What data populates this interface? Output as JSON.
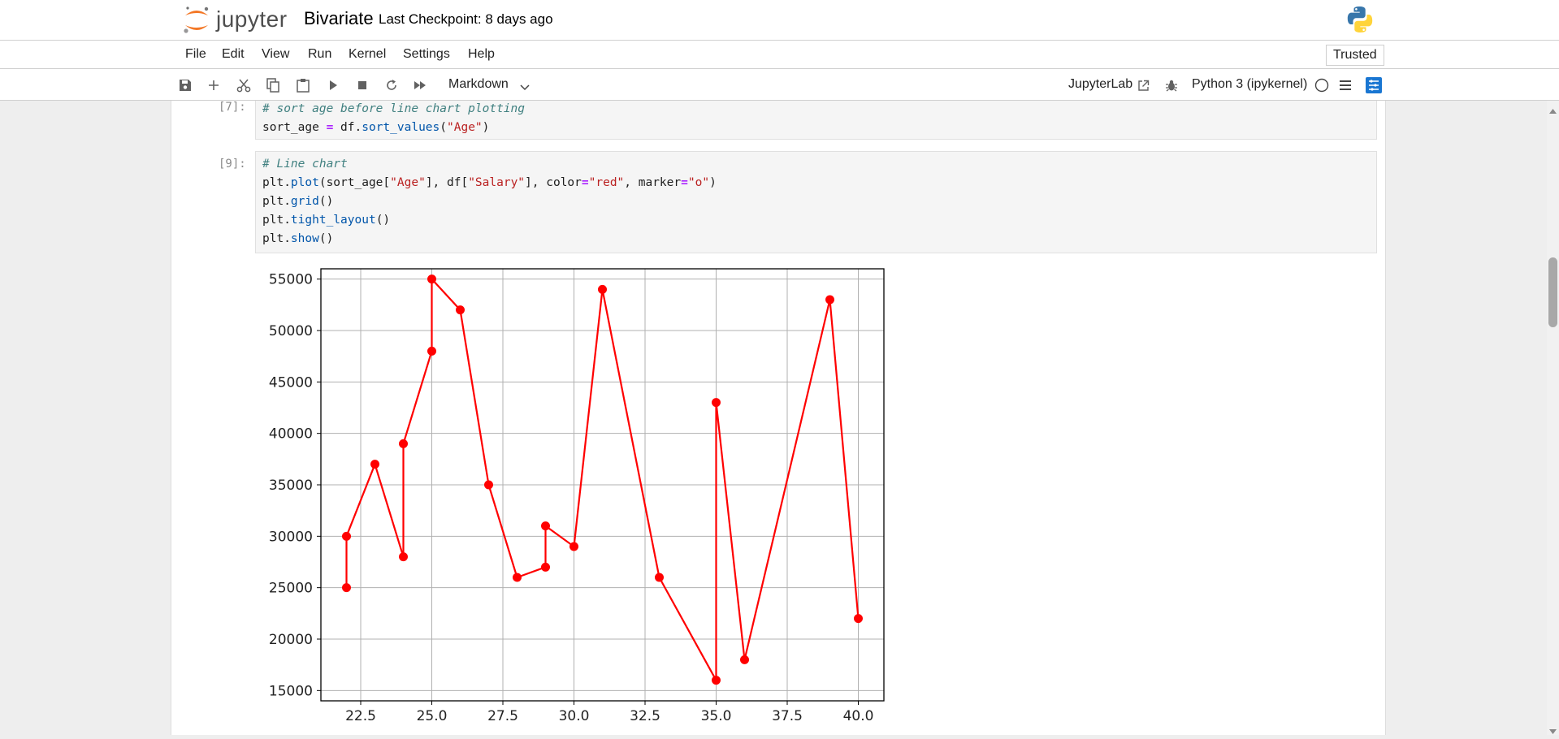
{
  "header": {
    "app_name": "jupyter",
    "notebook_title": "Bivariate",
    "checkpoint": "Last Checkpoint: 8 days ago"
  },
  "menu": {
    "items": [
      "File",
      "Edit",
      "View",
      "Run",
      "Kernel",
      "Settings",
      "Help"
    ],
    "trusted": "Trusted"
  },
  "toolbar": {
    "icons": [
      "save-icon",
      "add-icon",
      "cut-icon",
      "copy-icon",
      "paste-icon",
      "run-icon",
      "stop-icon",
      "restart-icon",
      "fast-forward-icon"
    ],
    "cell_type": "Markdown",
    "jupyterlab_link": "JupyterLab",
    "kernel": "Python 3 (ipykernel)"
  },
  "cells": [
    {
      "prompt": "[7]:",
      "lines": [
        "# sort age before line chart plotting",
        "sort_age = df.sort_values(\"Age\")"
      ]
    },
    {
      "prompt": "[9]:",
      "lines": [
        "# Line chart",
        "plt.plot(sort_age[\"Age\"], df[\"Salary\"], color=\"red\", marker=\"o\")",
        "plt.grid()",
        "plt.tight_layout()",
        "plt.show()"
      ]
    }
  ],
  "colors": {
    "line": "#ff0000",
    "accent": "#1976d2",
    "jupyter_orange": "#f37726"
  },
  "chart_data": {
    "type": "line",
    "title": "",
    "xlabel": "",
    "ylabel": "",
    "xlim": [
      21.1,
      40.9
    ],
    "ylim": [
      14000,
      56000
    ],
    "xticks": [
      "22.5",
      "25.0",
      "27.5",
      "30.0",
      "32.5",
      "35.0",
      "37.5",
      "40.0"
    ],
    "yticks": [
      "15000",
      "20000",
      "25000",
      "30000",
      "35000",
      "40000",
      "45000",
      "50000",
      "55000"
    ],
    "grid": true,
    "series": [
      {
        "color": "#ff0000",
        "marker": "o",
        "points": [
          {
            "x": 22,
            "y": 25000
          },
          {
            "x": 22,
            "y": 30000
          },
          {
            "x": 23,
            "y": 37000
          },
          {
            "x": 24,
            "y": 28000
          },
          {
            "x": 24,
            "y": 39000
          },
          {
            "x": 25,
            "y": 48000
          },
          {
            "x": 25,
            "y": 55000
          },
          {
            "x": 26,
            "y": 52000
          },
          {
            "x": 27,
            "y": 35000
          },
          {
            "x": 28,
            "y": 26000
          },
          {
            "x": 29,
            "y": 27000
          },
          {
            "x": 29,
            "y": 31000
          },
          {
            "x": 30,
            "y": 29000
          },
          {
            "x": 31,
            "y": 54000
          },
          {
            "x": 33,
            "y": 26000
          },
          {
            "x": 35,
            "y": 16000
          },
          {
            "x": 35,
            "y": 43000
          },
          {
            "x": 36,
            "y": 18000
          },
          {
            "x": 39,
            "y": 53000
          },
          {
            "x": 40,
            "y": 22000
          }
        ]
      }
    ]
  }
}
